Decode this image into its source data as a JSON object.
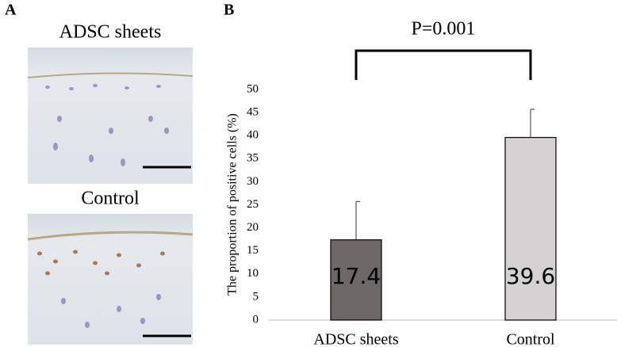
{
  "panels": [
    {
      "label": "A",
      "images": [
        {
          "caption": "ADSC sheets"
        },
        {
          "caption": "Control"
        }
      ]
    },
    {
      "label": "B"
    }
  ],
  "chart_data": {
    "type": "bar",
    "y_label": "The proportion of positive cells (%)",
    "annotation": "P=0.001",
    "categories": [
      "ADSC sheets",
      "Control"
    ],
    "values": [
      17.4,
      39.6
    ],
    "errors": [
      8.3,
      6.1
    ],
    "colors": [
      "#6d6767",
      "#d4d2d2"
    ],
    "ylim": [
      0,
      50
    ],
    "yticks": [
      0,
      5,
      10,
      15,
      20,
      25,
      30,
      35,
      40,
      45,
      50
    ],
    "grid": false
  }
}
